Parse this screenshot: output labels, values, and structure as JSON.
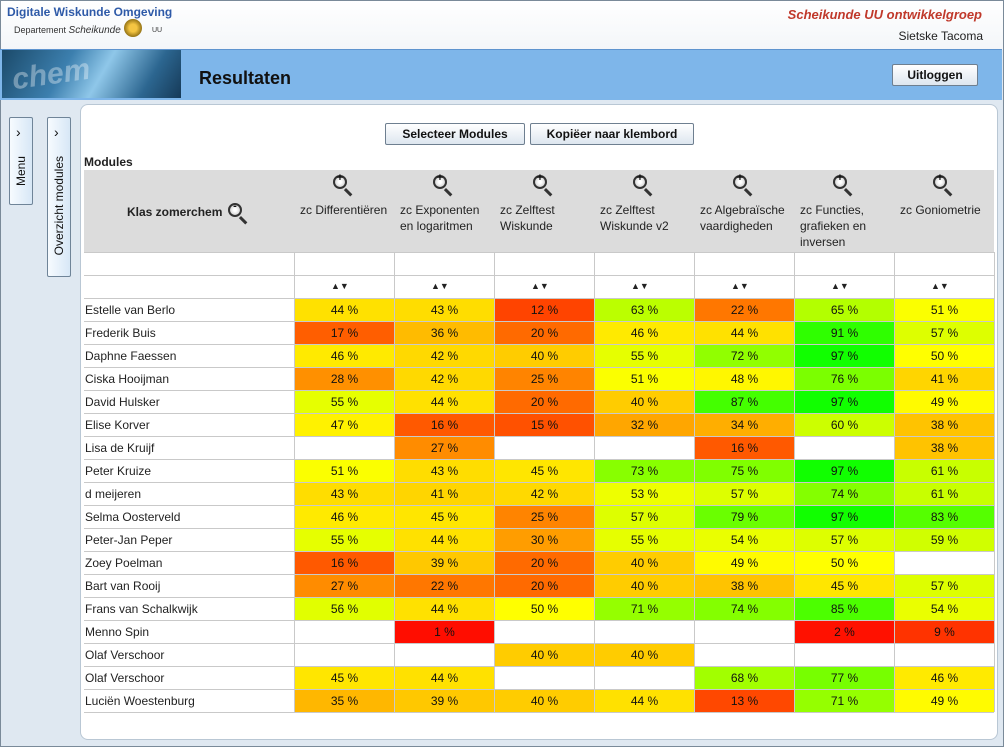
{
  "header": {
    "logo_title": "Digitale Wiskunde Omgeving",
    "dept_prefix": "Departement",
    "dept_name": "Scheikunde",
    "uu": "UU",
    "group": "Scheikunde UU ontwikkelgroep",
    "user": "Sietske Tacoma",
    "page_title": "Resultaten",
    "logout_label": "Uitloggen"
  },
  "sidebar": {
    "menu_label": "Menu",
    "overview_label": "Overzicht modules"
  },
  "toolbar": {
    "select_label": "Selecteer Modules",
    "copy_label": "Kopiëer naar klembord"
  },
  "table": {
    "section_label": "Modules",
    "class_label": "Klas zomerchem",
    "columns": [
      "zc Differentiëren",
      "zc Exponenten en logaritmen",
      "zc Zelftest Wiskunde",
      "zc Zelftest Wiskunde v2",
      "zc Algebraïsche vaardigheden",
      "zc Functies, grafieken en inversen",
      "zc Goniometrie"
    ],
    "rows": [
      {
        "name": "Estelle van Berlo",
        "values": [
          44,
          43,
          12,
          63,
          22,
          65,
          51
        ]
      },
      {
        "name": "Frederik Buis",
        "values": [
          17,
          36,
          20,
          46,
          44,
          91,
          57
        ]
      },
      {
        "name": "Daphne Faessen",
        "values": [
          46,
          42,
          40,
          55,
          72,
          97,
          50
        ]
      },
      {
        "name": "Ciska Hooijman",
        "values": [
          28,
          42,
          25,
          51,
          48,
          76,
          41
        ]
      },
      {
        "name": "David Hulsker",
        "values": [
          55,
          44,
          20,
          40,
          87,
          97,
          49
        ]
      },
      {
        "name": "Elise Korver",
        "values": [
          47,
          16,
          15,
          32,
          34,
          60,
          38
        ]
      },
      {
        "name": "Lisa de Kruijf",
        "values": [
          null,
          27,
          null,
          null,
          16,
          null,
          38
        ]
      },
      {
        "name": "Peter Kruize",
        "values": [
          51,
          43,
          45,
          73,
          75,
          97,
          61
        ]
      },
      {
        "name": "d meijeren",
        "values": [
          43,
          41,
          42,
          53,
          57,
          74,
          61
        ]
      },
      {
        "name": "Selma Oosterveld",
        "values": [
          46,
          45,
          25,
          57,
          79,
          97,
          83
        ]
      },
      {
        "name": "Peter-Jan Peper",
        "values": [
          55,
          44,
          30,
          55,
          54,
          57,
          59
        ]
      },
      {
        "name": "Zoey Poelman",
        "values": [
          16,
          39,
          20,
          40,
          49,
          50,
          null
        ]
      },
      {
        "name": "Bart van Rooij",
        "values": [
          27,
          22,
          20,
          40,
          38,
          45,
          57
        ]
      },
      {
        "name": "Frans van Schalkwijk",
        "values": [
          56,
          44,
          50,
          71,
          74,
          85,
          54
        ]
      },
      {
        "name": "Menno Spin",
        "values": [
          null,
          1,
          null,
          null,
          null,
          2,
          9
        ]
      },
      {
        "name": "Olaf Verschoor",
        "values": [
          null,
          null,
          40,
          40,
          null,
          null,
          null
        ]
      },
      {
        "name": "Olaf Verschoor",
        "values": [
          45,
          44,
          null,
          null,
          68,
          77,
          46
        ]
      },
      {
        "name": "Luciën Woestenburg",
        "values": [
          35,
          39,
          40,
          44,
          13,
          71,
          49
        ]
      }
    ]
  }
}
